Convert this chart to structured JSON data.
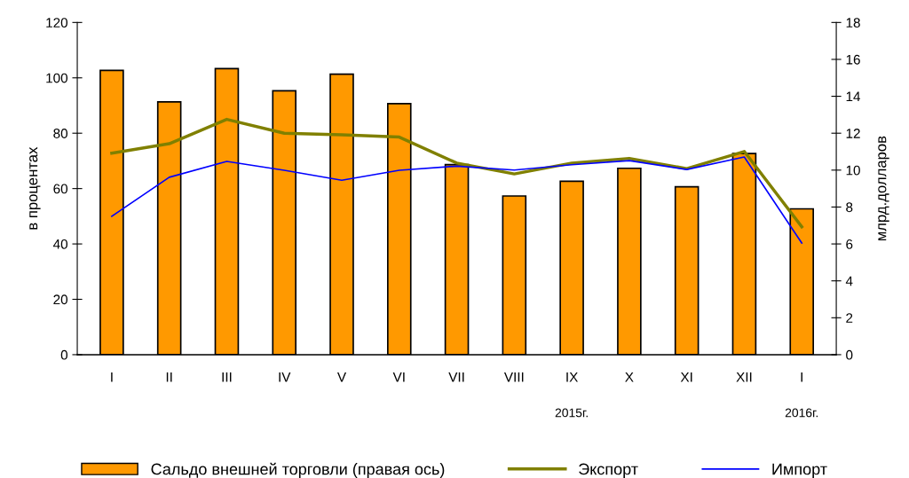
{
  "chart_data": {
    "type": "bar",
    "ylabel": "в процентах",
    "y2label": "млрд.долларов",
    "categories": [
      "I",
      "II",
      "III",
      "IV",
      "V",
      "VI",
      "VII",
      "VIII",
      "IX",
      "X",
      "XI",
      "XII",
      "I"
    ],
    "series": [
      {
        "name": "Сальдо внешней торговли (правая ось)",
        "axis": "y2",
        "color": "#ff9900",
        "values": [
          15.4,
          13.7,
          15.5,
          14.3,
          15.2,
          13.6,
          10.3,
          8.6,
          9.4,
          10.1,
          9.1,
          10.9,
          7.9
        ]
      },
      {
        "name": "Экспорт",
        "type": "line",
        "color": "#808000",
        "values": [
          72.8,
          76.2,
          85,
          80,
          79.4,
          78.6,
          69.2,
          65.3,
          69.2,
          70.9,
          67.2,
          73.4,
          46.2
        ]
      },
      {
        "name": "Импорт",
        "type": "line",
        "color": "#0000ff",
        "values": [
          50,
          64.1,
          69.8,
          66.6,
          63,
          66.6,
          68.1,
          66.7,
          68.6,
          70.1,
          66.9,
          71.4,
          40.3
        ]
      }
    ],
    "ylim": [
      0,
      120
    ],
    "yticks": [
      0,
      20,
      40,
      60,
      80,
      100,
      120
    ],
    "y2lim": [
      0,
      18
    ],
    "y2ticks": [
      0,
      2,
      4,
      6,
      8,
      10,
      12,
      14,
      16,
      18
    ],
    "annotations": [
      "2015г.",
      "2016г."
    ],
    "grid": false,
    "legend": "bottom"
  }
}
